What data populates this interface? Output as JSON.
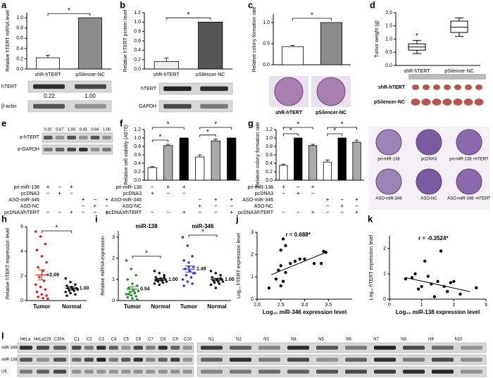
{
  "chart_data": [
    {
      "panel": "a",
      "type": "bar",
      "y_label": "Relative hTERT mRNA level",
      "categories": [
        "shR-hTERT",
        "pSilencer-NC"
      ],
      "values": [
        0.22,
        1.0
      ],
      "errors": [
        0.05,
        0
      ],
      "colors": [
        "#ffffff",
        "#8c8c8c"
      ],
      "ylim": [
        0,
        1.1
      ],
      "yticks": [
        {
          "value": 0,
          "label": "0.0"
        },
        0.2,
        0.4,
        0.6,
        0.8,
        {
          "value": 1,
          "label": "1.0"
        }
      ],
      "sig_labels": [
        "*"
      ]
    },
    {
      "panel": "b",
      "type": "bar",
      "y_label": "Relative hTERT protein level",
      "categories": [
        "shR-hTERT",
        "pSilencer-NC"
      ],
      "values": [
        0.16,
        1.0
      ],
      "errors": [
        0.07,
        0
      ],
      "colors": [
        "#eeeeee",
        "#555555"
      ],
      "ylim": [
        0,
        1.2
      ],
      "yticks": [
        {
          "value": 0,
          "label": "0.0"
        },
        0.2,
        0.4,
        0.6,
        0.8,
        {
          "value": 1,
          "label": "1.0"
        },
        1.2
      ],
      "sig_labels": [
        "*"
      ]
    },
    {
      "panel": "c",
      "type": "bar",
      "y_label": "Relative colony formation rate",
      "categories": [
        null,
        null
      ],
      "values": [
        0.43,
        1.0
      ],
      "errors": [
        0.03,
        0
      ],
      "colors": [
        "#ffffff",
        "#8c8c8c"
      ],
      "ylim": [
        0,
        1.2
      ],
      "yticks": [
        {
          "value": 0,
          "label": "0.0"
        },
        0.5,
        {
          "value": 1,
          "label": "1.0"
        }
      ],
      "sig_labels": [
        "*"
      ]
    },
    {
      "panel": "d",
      "type": "box",
      "y_label": "Tumor weight (g)",
      "categories": [
        "shR-hTERT",
        "pSilencer-NC"
      ],
      "min": [
        0.45,
        1.1
      ],
      "q1": [
        0.58,
        1.25
      ],
      "median": [
        0.7,
        1.45
      ],
      "q3": [
        0.82,
        1.68
      ],
      "max": [
        0.95,
        1.8
      ],
      "ylim": [
        0,
        2
      ],
      "yticks": [
        {
          "value": 0,
          "label": "0.0"
        },
        0.5,
        {
          "value": 1,
          "label": "1.0"
        },
        1.5,
        {
          "value": 2,
          "label": "2.0"
        }
      ],
      "sig_labels": [
        "*"
      ]
    },
    {
      "panel": "f",
      "type": "bar",
      "y_label": "Relative cell viability (A570)",
      "categories": [
        null,
        null,
        null,
        null,
        null,
        null
      ],
      "values": [
        0.3,
        0.82,
        1.0,
        0.55,
        0.93,
        1.0
      ],
      "errors": [
        0.02,
        0.03,
        0,
        0.05,
        0.04,
        0
      ],
      "colors": [
        "#ffffff",
        "#aaaaaa",
        "#000000",
        "#ffffff",
        "#aaaaaa",
        "#000000"
      ],
      "ylim": [
        0,
        1.2
      ],
      "yticks": [
        {
          "value": 0,
          "label": "0.0"
        },
        0.2,
        0.4,
        0.6,
        0.8,
        {
          "value": 1,
          "label": "1.0"
        },
        1.2
      ],
      "sig_labels": [
        "*",
        "*",
        "*",
        "*"
      ]
    },
    {
      "panel": "g",
      "type": "bar",
      "y_label": "Relative colony formation rate",
      "categories": [
        null,
        null,
        null,
        null,
        null,
        null
      ],
      "values": [
        0.35,
        1.0,
        0.82,
        0.43,
        1.0,
        0.9
      ],
      "errors": [
        0.03,
        0,
        0.03,
        0.05,
        0,
        0.05
      ],
      "colors": [
        "#ffffff",
        "#000000",
        "#aaaaaa",
        "#ffffff",
        "#000000",
        "#aaaaaa"
      ],
      "ylim": [
        0,
        1.2
      ],
      "yticks": [
        {
          "value": 0,
          "label": "0.0"
        },
        0.2,
        0.4,
        0.6,
        0.8,
        {
          "value": 1,
          "label": "1.0"
        },
        1.2
      ],
      "sig_labels": [
        "*",
        "*",
        "*",
        "*"
      ]
    },
    {
      "panel": "h",
      "type": "strip",
      "y_label": "Relative hTERT expression level",
      "groups": [
        {
          "name": "Tumor",
          "color": "#e02020",
          "values": [
            5.6,
            5.2,
            4.6,
            4.1,
            3.6,
            3.1,
            2.7,
            2.4,
            2.1,
            1.9,
            1.6,
            1.3,
            1.1,
            0.9,
            0.7,
            0.5,
            0.4,
            0.3,
            0.2,
            0.15
          ],
          "mean": 2.09,
          "sem": 0.42,
          "mean_label": "2.09"
        },
        {
          "name": "Normal",
          "color": "#111111",
          "values": [
            1.8,
            1.5,
            1.3,
            1.2,
            1.1,
            1.0,
            1.0,
            0.9,
            0.9,
            0.8,
            0.8,
            0.7,
            0.6,
            0.5,
            0.4
          ],
          "mean": 1.0,
          "sem": 0.12,
          "mean_label": "1.00"
        }
      ],
      "ylim": [
        0,
        6
      ],
      "yticks": [
        0,
        2,
        4,
        6
      ],
      "sig_labels": [
        "*"
      ]
    },
    {
      "panel": "i",
      "type": "strip",
      "y_label": "Relative miRNA expression",
      "group_titles": [
        "miR-138",
        "miR-346"
      ],
      "groups": [
        {
          "name": "Tumor",
          "color": "#2e8b2e",
          "values": [
            1.9,
            1.5,
            1.2,
            1.0,
            0.8,
            0.7,
            0.6,
            0.5,
            0.45,
            0.4,
            0.35,
            0.3,
            0.25,
            0.2,
            0.15,
            0.1,
            0.05,
            0.3
          ],
          "mean": 0.54,
          "sem": 0.12,
          "mean_label": "0.54"
        },
        {
          "name": "Normal",
          "color": "#111111",
          "values": [
            1.4,
            1.3,
            1.2,
            1.1,
            1.05,
            1.0,
            1.0,
            0.95,
            0.9,
            0.9,
            0.85,
            0.8,
            0.75,
            1.1,
            0.95
          ],
          "mean": 1.0,
          "sem": 0.05,
          "mean_label": "1.00"
        },
        {
          "name": "Tumor",
          "color": "#2a3fbf",
          "values": [
            3.0,
            2.6,
            2.1,
            1.9,
            1.8,
            1.6,
            1.5,
            1.4,
            1.3,
            1.2,
            1.1,
            1.0,
            0.9,
            0.8,
            0.7,
            1.6,
            1.3
          ],
          "mean": 1.49,
          "sem": 0.15,
          "mean_label": "1.49"
        },
        {
          "name": "Normal",
          "color": "#111111",
          "values": [
            1.4,
            1.3,
            1.2,
            1.1,
            1.0,
            1.0,
            0.95,
            0.9,
            0.9,
            0.85,
            0.8,
            0.75,
            0.6,
            1.05
          ],
          "mean": 1.0,
          "sem": 0.06,
          "mean_label": "1.00"
        }
      ],
      "ylim": [
        0,
        3.3
      ],
      "yticks": [
        0,
        1,
        2,
        3
      ],
      "sig_labels": [
        "*",
        "*"
      ]
    },
    {
      "panel": "j",
      "type": "scatter",
      "annotation": "r = 0.688*",
      "x_label": "Log₁₀ miR-346 expression level",
      "y_label": "Log₁₀ hTERT expression level",
      "x": [
        2.25,
        2.4,
        2.45,
        2.5,
        2.5,
        2.55,
        2.6,
        2.5,
        2.55,
        2.7,
        2.8,
        2.9,
        3.0,
        3.2,
        3.35,
        3.45,
        3.4,
        2.6
      ],
      "y": [
        0.5,
        0.9,
        1.3,
        1.5,
        2.2,
        2.7,
        2.4,
        0.6,
        0.8,
        1.6,
        1.7,
        1.8,
        1.8,
        1.6,
        1.6,
        2.1,
        2.15,
        1.2
      ],
      "fit": {
        "x": [
          2.3,
          3.45
        ],
        "y": [
          1.1,
          2.1
        ]
      },
      "xlim": [
        2,
        4
      ],
      "xticks": [
        {
          "value": 2,
          "label": "2.0"
        },
        2.5,
        {
          "value": 3,
          "label": "3.0"
        },
        3.5
      ],
      "ylim": [
        0,
        3
      ],
      "yticks": [
        0,
        1,
        2,
        3
      ]
    },
    {
      "panel": "k",
      "type": "scatter",
      "annotation": "r = -0.3524*",
      "x_label": "Log₁₀ miR-138 expression level",
      "y_label": "Log₁₀ hTERT expression level",
      "x": [
        0.5,
        0.7,
        0.8,
        0.9,
        1.0,
        1.1,
        1.2,
        1.3,
        1.5,
        1.6,
        1.7,
        1.8,
        2.0,
        2.2,
        2.7,
        1.4,
        1.9
      ],
      "y": [
        0.8,
        0.85,
        1.0,
        0.4,
        0.5,
        1.5,
        0.9,
        0.6,
        0.7,
        1.9,
        0.5,
        0.3,
        0.7,
        0.2,
        0.45,
        0.1,
        0.65
      ],
      "fit": {
        "x": [
          0.5,
          2.5
        ],
        "y": [
          0.85,
          0.3
        ]
      },
      "xlim": [
        0,
        3
      ],
      "xticks": [
        0,
        1,
        2,
        3
      ],
      "ylim": [
        0,
        2.5
      ],
      "yticks": [
        0,
        1,
        2
      ]
    }
  ],
  "figure": {
    "a_blot": {
      "rows": [
        "hTERT",
        "β-actin"
      ],
      "quant": [
        "0.22",
        "1.00"
      ]
    },
    "b_blot": {
      "rows": [
        "hTERT",
        "GAPDH"
      ]
    },
    "c_photo": {
      "labels": [
        "shR-hTERT",
        "pSilencer-NC"
      ]
    },
    "d_photo": {
      "rows": [
        "shR-hTERT",
        "pSilencer-NC"
      ]
    },
    "e": {
      "panel": "e",
      "rows": [
        "α-hTERT",
        "α-GAPDH"
      ],
      "quant": [
        "0.32",
        "0.67",
        "1.00",
        "0.43",
        "0.94",
        "1.00"
      ],
      "conditions": {
        "rows": [
          {
            "name": "pri-miR-138",
            "cells": [
              "+",
              "−",
              "+",
              null,
              null,
              null
            ]
          },
          {
            "name": "pcDNA3",
            "cells": [
              "−",
              "+",
              "−",
              null,
              null,
              null
            ]
          },
          {
            "name": "ASO-miR-346",
            "cells": [
              null,
              null,
              null,
              "+",
              "−",
              "+"
            ]
          },
          {
            "name": "ASO-NC",
            "cells": [
              null,
              null,
              null,
              "−",
              "+",
              "−"
            ]
          },
          {
            "name": "pcDNA3/hTERT",
            "cells": [
              "−",
              "−",
              "+",
              "−",
              "−",
              "+"
            ]
          }
        ]
      }
    },
    "f_conditions": {
      "rows": [
        {
          "name": "pri-miR-138",
          "cells": [
            "−",
            "+",
            "+",
            null,
            null,
            null
          ]
        },
        {
          "name": "pcDNA3",
          "cells": [
            "+",
            "−",
            "−",
            null,
            null,
            null
          ]
        },
        {
          "name": "ASO-miR-346",
          "cells": [
            null,
            null,
            null,
            "−",
            "+",
            "+"
          ]
        },
        {
          "name": "ASO-NC",
          "cells": [
            null,
            null,
            null,
            "+",
            "−",
            "−"
          ]
        },
        {
          "name": "pcDNA3/hTERT",
          "cells": [
            "−",
            "−",
            "+",
            "−",
            "−",
            "+"
          ]
        }
      ]
    },
    "g_conditions": {
      "rows": [
        {
          "name": "pri-miR-138",
          "cells": [
            "+",
            "−",
            "+",
            null,
            null,
            null
          ]
        },
        {
          "name": "pcDNA3",
          "cells": [
            "−",
            "+",
            "−",
            null,
            null,
            null
          ]
        },
        {
          "name": "ASO-miR-346",
          "cells": [
            null,
            null,
            null,
            "+",
            "−",
            "+"
          ]
        },
        {
          "name": "ASO-NC",
          "cells": [
            null,
            null,
            null,
            "−",
            "+",
            "−"
          ]
        },
        {
          "name": "pcDNA3/hTERT",
          "cells": [
            "−",
            "−",
            "+",
            "−",
            "−",
            "+"
          ]
        }
      ]
    },
    "g_photo": {
      "labels": [
        "pri-miR-138",
        "pcDNA3",
        "pri-miR-138 +hTERT",
        "ASO-miR-346",
        "ASO-NC",
        "ASO-miR-346 +hTERT"
      ]
    },
    "l": {
      "panel": "l",
      "rows": [
        "miR-346",
        "miR-138",
        "U6"
      ],
      "cell_lines": [
        "HeLa",
        "HeLa229",
        "C33A"
      ],
      "tumor_lanes": [
        "C1",
        "C2",
        "C3",
        "C4",
        "C5",
        "C6",
        "C7",
        "C8",
        "C9",
        "C10"
      ],
      "normal_lanes": [
        "N1",
        "N2",
        "N3",
        "N4",
        "N5",
        "N6",
        "N7",
        "N8",
        "N9",
        "N10"
      ]
    }
  }
}
